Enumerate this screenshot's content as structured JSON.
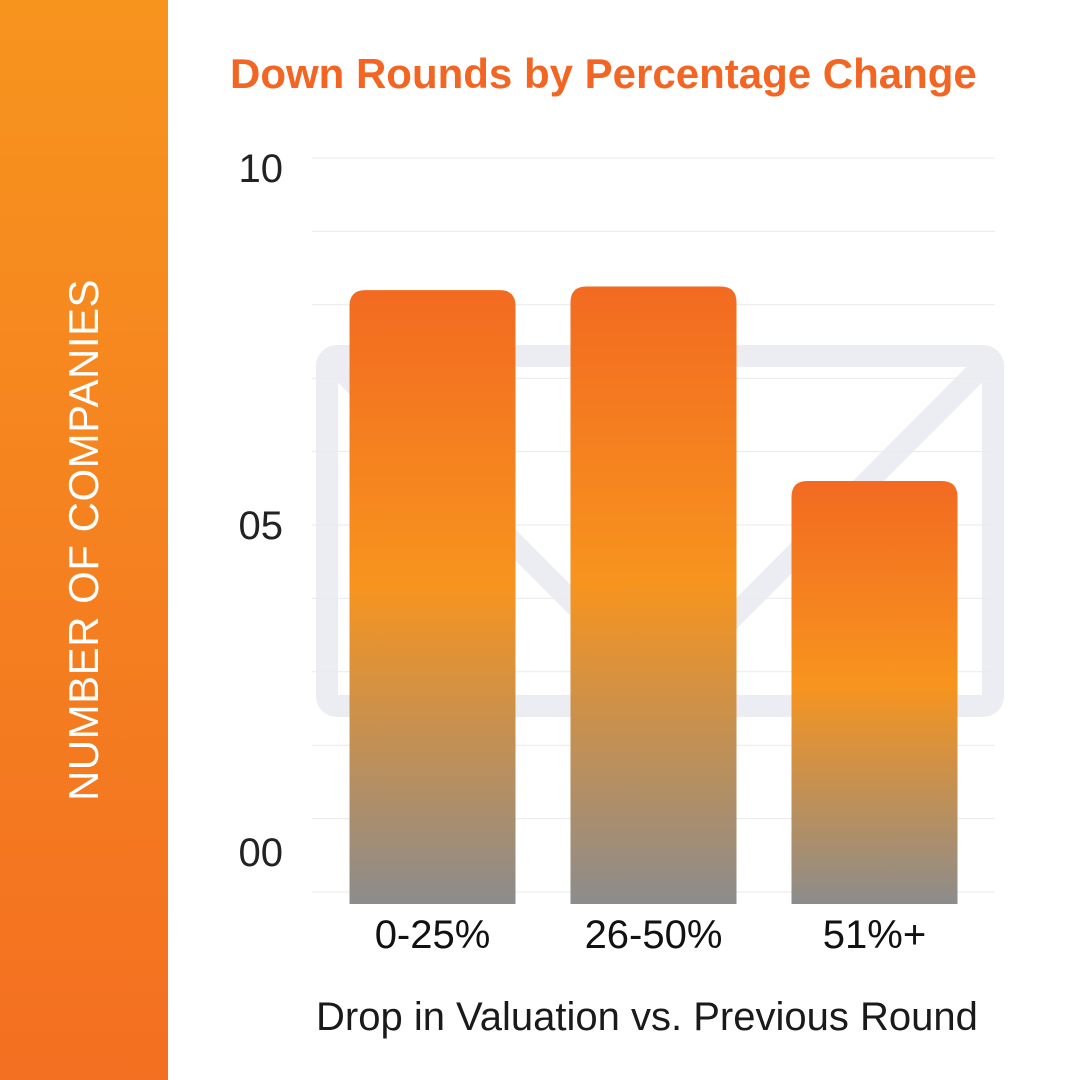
{
  "chart_data": {
    "type": "bar",
    "title": "Down Rounds by Percentage Change",
    "xlabel": "Drop in Valuation vs. Previous Round",
    "ylabel": "NUMBER OF COMPANIES",
    "categories": [
      "0-25%",
      "26-50%",
      "51%+"
    ],
    "values": [
      8.2,
      8.25,
      5.6
    ],
    "ylim": [
      0,
      10
    ],
    "yticks": [
      {
        "value": 0,
        "label": "00"
      },
      {
        "value": 5,
        "label": "05"
      },
      {
        "value": 10,
        "label": "10"
      }
    ],
    "grid": true,
    "legend": "none"
  },
  "colors": {
    "band_top": "#f7941e",
    "band_bottom": "#f36f21",
    "title": "#f26522",
    "bar_top": "#f26a21",
    "bar_mid": "#f7941e",
    "bar_bottom": "#8c8c8c",
    "grid": "#e9e9ee",
    "watermark": "#ececf3"
  },
  "watermark_icon": "envelope-icon"
}
